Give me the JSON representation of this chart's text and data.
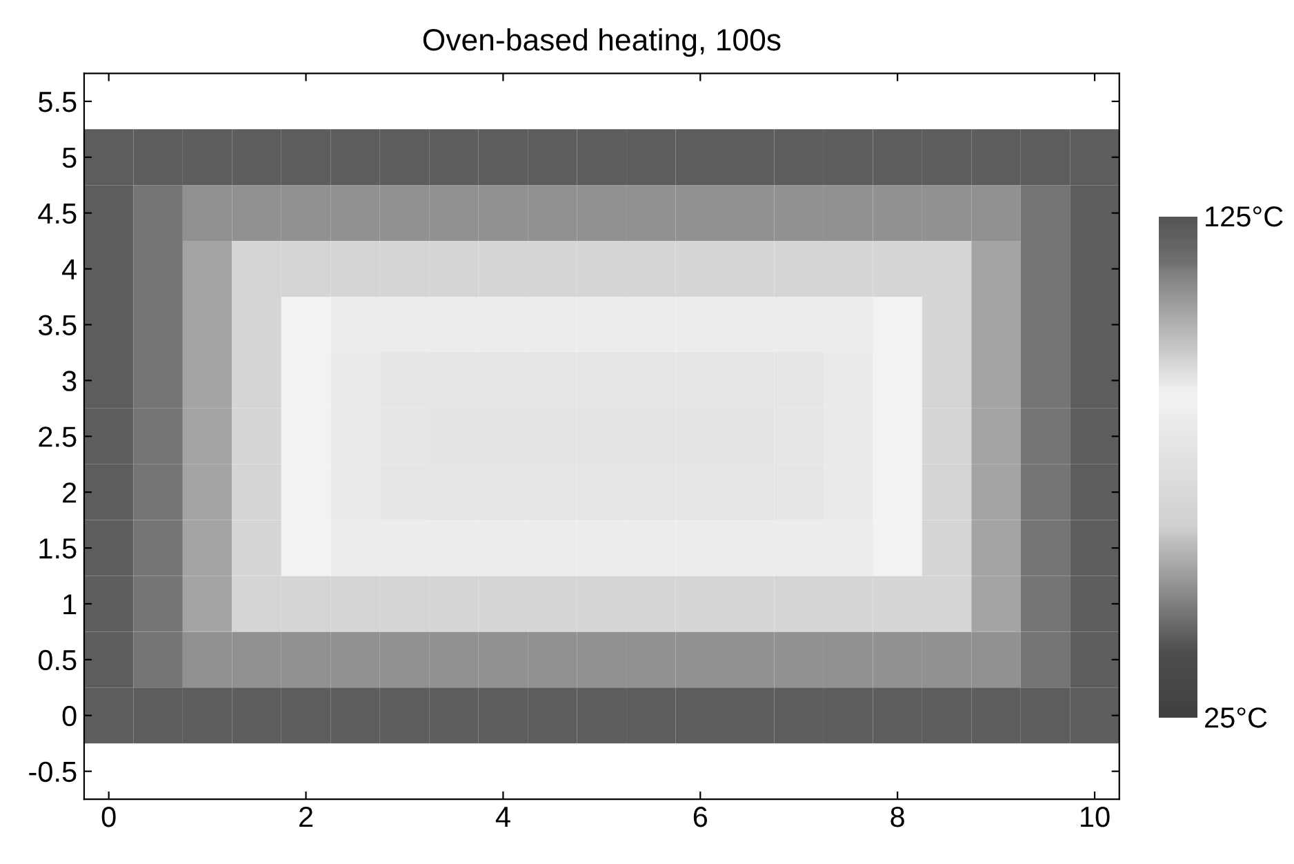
{
  "chart_data": {
    "type": "heatmap",
    "title": "Oven-based heating, 100s",
    "categories": [
      "0",
      null,
      null,
      null,
      "2",
      null,
      null,
      null,
      "4",
      null,
      null,
      null,
      "6",
      null,
      null,
      null,
      "8",
      null,
      null,
      null,
      "10"
    ],
    "y_categories": [
      "5.5",
      "5",
      "4.5",
      "4",
      "3.5",
      "3",
      "2.5",
      "2",
      "1.5",
      "1",
      "0.5",
      "0",
      "-0.5"
    ],
    "cells": [
      [
        null,
        null,
        null,
        null,
        null,
        null,
        null,
        null,
        null,
        null,
        null,
        null,
        null,
        null,
        null,
        null,
        null,
        null,
        null,
        null,
        null
      ],
      [
        122,
        122,
        122,
        122,
        122,
        122,
        122,
        122,
        122,
        122,
        122,
        122,
        122,
        122,
        122,
        122,
        122,
        122,
        122,
        122,
        122
      ],
      [
        122,
        115,
        110,
        110,
        110,
        110,
        110,
        110,
        110,
        110,
        110,
        110,
        110,
        110,
        110,
        110,
        110,
        110,
        110,
        115,
        122
      ],
      [
        122,
        115,
        106,
        96,
        96,
        96,
        96,
        96,
        96,
        96,
        96,
        96,
        96,
        96,
        96,
        96,
        96,
        96,
        106,
        115,
        122
      ],
      [
        122,
        115,
        106,
        96,
        89,
        84,
        84,
        84,
        84,
        84,
        84,
        84,
        84,
        84,
        84,
        84,
        89,
        96,
        106,
        115,
        122
      ],
      [
        122,
        115,
        106,
        96,
        89,
        83,
        80,
        79,
        79,
        79,
        79,
        79,
        79,
        79,
        80,
        83,
        89,
        96,
        106,
        115,
        122
      ],
      [
        122,
        115,
        106,
        96,
        89,
        83,
        80,
        77,
        77,
        77,
        77,
        77,
        77,
        77,
        80,
        83,
        89,
        96,
        106,
        115,
        122
      ],
      [
        122,
        115,
        106,
        96,
        89,
        83,
        80,
        79,
        79,
        79,
        79,
        79,
        79,
        79,
        80,
        83,
        89,
        96,
        106,
        115,
        122
      ],
      [
        122,
        115,
        106,
        96,
        89,
        84,
        84,
        84,
        84,
        84,
        84,
        84,
        84,
        84,
        84,
        84,
        89,
        96,
        106,
        115,
        122
      ],
      [
        122,
        115,
        106,
        96,
        96,
        96,
        96,
        96,
        96,
        96,
        96,
        96,
        96,
        96,
        96,
        96,
        96,
        96,
        106,
        115,
        122
      ],
      [
        122,
        115,
        110,
        110,
        110,
        110,
        110,
        110,
        110,
        110,
        110,
        110,
        110,
        110,
        110,
        110,
        110,
        110,
        110,
        115,
        122
      ],
      [
        122,
        122,
        122,
        122,
        122,
        122,
        122,
        122,
        122,
        122,
        122,
        122,
        122,
        122,
        122,
        122,
        122,
        122,
        122,
        122,
        122
      ],
      [
        null,
        null,
        null,
        null,
        null,
        null,
        null,
        null,
        null,
        null,
        null,
        null,
        null,
        null,
        null,
        null,
        null,
        null,
        null,
        null,
        null
      ]
    ],
    "clim": [
      25,
      125
    ],
    "cticks": [
      {
        "value": 25,
        "label": "25°C"
      },
      {
        "value": 125,
        "label": "125°C"
      }
    ],
    "grid": false
  }
}
